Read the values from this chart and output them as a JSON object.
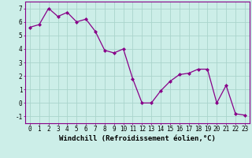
{
  "x": [
    0,
    1,
    2,
    3,
    4,
    5,
    6,
    7,
    8,
    9,
    10,
    11,
    12,
    13,
    14,
    15,
    16,
    17,
    18,
    19,
    20,
    21,
    22,
    23
  ],
  "y": [
    5.6,
    5.8,
    7.0,
    6.4,
    6.7,
    6.0,
    6.2,
    5.3,
    3.9,
    3.7,
    4.0,
    1.8,
    0.0,
    0.0,
    0.9,
    1.6,
    2.1,
    2.2,
    2.5,
    2.5,
    0.0,
    1.3,
    -0.8,
    -0.9
  ],
  "line_color": "#880088",
  "marker": "D",
  "markersize": 2.0,
  "linewidth": 0.9,
  "xlabel": "Windchill (Refroidissement éolien,°C)",
  "xlabel_fontsize": 6.5,
  "ylim": [
    -1.5,
    7.5
  ],
  "yticks": [
    -1,
    0,
    1,
    2,
    3,
    4,
    5,
    6,
    7
  ],
  "xticks": [
    0,
    1,
    2,
    3,
    4,
    5,
    6,
    7,
    8,
    9,
    10,
    11,
    12,
    13,
    14,
    15,
    16,
    17,
    18,
    19,
    20,
    21,
    22,
    23
  ],
  "xtick_labels": [
    "0",
    "1",
    "2",
    "3",
    "4",
    "5",
    "6",
    "7",
    "8",
    "9",
    "10",
    "11",
    "12",
    "13",
    "14",
    "15",
    "16",
    "17",
    "18",
    "19",
    "20",
    "21",
    "22",
    "23"
  ],
  "tick_fontsize": 5.5,
  "background_color": "#cceee8",
  "grid_color": "#aad4cc",
  "spine_color": "#880088"
}
